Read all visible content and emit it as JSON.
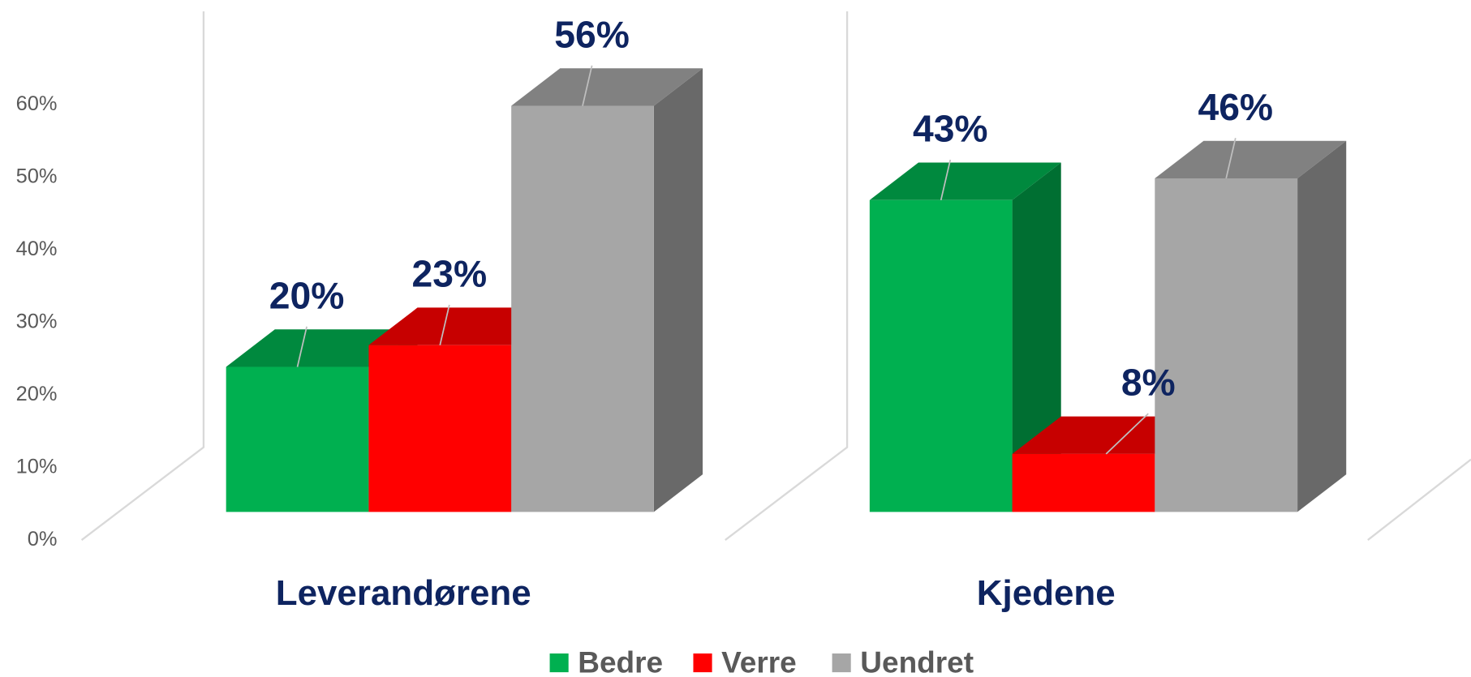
{
  "chart_data": {
    "type": "bar3d",
    "categories": [
      "Leverandørene",
      "Kjedene"
    ],
    "series": [
      {
        "name": "Bedre",
        "color": "#00b050",
        "values": [
          20,
          43
        ],
        "value_labels": [
          "20%",
          "43%"
        ]
      },
      {
        "name": "Verre",
        "color": "#ff0000",
        "values": [
          23,
          8
        ],
        "value_labels": [
          "23%",
          "8%"
        ]
      },
      {
        "name": "Uendret",
        "color": "#a6a6a6",
        "values": [
          56,
          46
        ],
        "value_labels": [
          "56%",
          "46%"
        ]
      }
    ],
    "ylim": [
      0,
      70
    ],
    "yticks": [
      {
        "value": 0,
        "label": "0%"
      },
      {
        "value": 10,
        "label": "10%"
      },
      {
        "value": 20,
        "label": "20%"
      },
      {
        "value": 30,
        "label": "30%"
      },
      {
        "value": 40,
        "label": "40%"
      },
      {
        "value": 50,
        "label": "50%"
      },
      {
        "value": 60,
        "label": "60%"
      }
    ],
    "legend": "bottom"
  }
}
